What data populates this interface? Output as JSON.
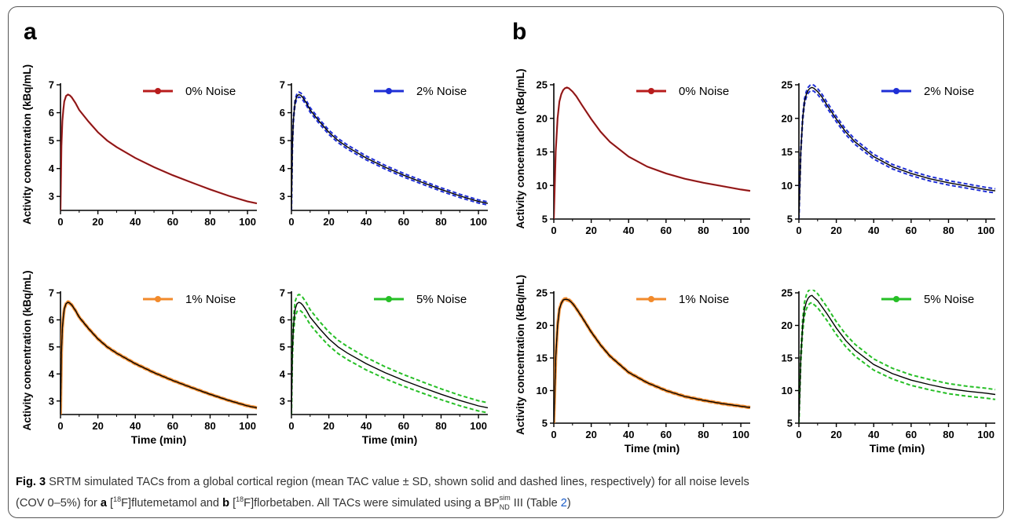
{
  "panels": {
    "a_label": "a",
    "b_label": "b"
  },
  "caption": {
    "fig_label": "Fig. 3",
    "text1": " SRTM simulated TACs from a global cortical region (mean TAC value ± SD, shown solid and dashed lines, respectively) for all noise levels",
    "text2a": "(COV 0–5%) for ",
    "a": "a",
    "iso_a_pre": " [",
    "iso_a_mass": "18",
    "iso_a_post": "F]flutemetamol and ",
    "b": "b",
    "iso_b_pre": " [",
    "iso_b_mass": "18",
    "iso_b_post": "F]florbetaben. All TACs were simulated using a BP",
    "bp_sup": "sim",
    "bp_sub": "ND",
    "text_end1": " III (Table ",
    "table_ref": "2",
    "text_end2": ")"
  },
  "chart_data": [
    {
      "id": "a-0",
      "type": "line",
      "noise": "0% Noise",
      "color": "#b81c1c",
      "x": [
        0,
        0.5,
        1,
        1.5,
        2,
        3,
        4,
        5,
        6,
        8,
        10,
        15,
        20,
        25,
        30,
        40,
        50,
        60,
        70,
        80,
        90,
        100,
        105
      ],
      "y": [
        2.5,
        4.8,
        5.7,
        6.1,
        6.4,
        6.6,
        6.65,
        6.62,
        6.55,
        6.35,
        6.1,
        5.68,
        5.3,
        5.0,
        4.77,
        4.38,
        4.05,
        3.76,
        3.5,
        3.25,
        3.02,
        2.82,
        2.75
      ],
      "sd": 0,
      "ylim": [
        2.5,
        7
      ],
      "yticks": [
        3,
        4,
        5,
        6,
        7
      ],
      "xlim": [
        0,
        105
      ],
      "xticks": [
        0,
        20,
        40,
        60,
        80,
        100
      ],
      "ylabel": "Activity concentration (kBq/mL)",
      "xlabel": ""
    },
    {
      "id": "a-2",
      "type": "line",
      "noise": "2% Noise",
      "color": "#1f2fd6",
      "x": [
        0,
        0.5,
        1,
        1.5,
        2,
        3,
        4,
        5,
        6,
        8,
        10,
        15,
        20,
        25,
        30,
        40,
        50,
        60,
        70,
        80,
        90,
        100,
        105
      ],
      "y": [
        2.5,
        4.8,
        5.7,
        6.1,
        6.4,
        6.6,
        6.65,
        6.62,
        6.55,
        6.35,
        6.1,
        5.68,
        5.3,
        5.0,
        4.77,
        4.38,
        4.05,
        3.76,
        3.5,
        3.25,
        3.02,
        2.82,
        2.75
      ],
      "sd": 0.09,
      "ylim": [
        2.5,
        7
      ],
      "yticks": [
        3,
        4,
        5,
        6,
        7
      ],
      "xlim": [
        0,
        105
      ],
      "xticks": [
        0,
        20,
        40,
        60,
        80,
        100
      ],
      "ylabel": "",
      "xlabel": ""
    },
    {
      "id": "a-1",
      "type": "line",
      "noise": "1% Noise",
      "color": "#f28a2b",
      "x": [
        0,
        0.5,
        1,
        1.5,
        2,
        3,
        4,
        5,
        6,
        8,
        10,
        15,
        20,
        25,
        30,
        40,
        50,
        60,
        70,
        80,
        90,
        100,
        105
      ],
      "y": [
        2.5,
        4.8,
        5.7,
        6.1,
        6.4,
        6.6,
        6.65,
        6.62,
        6.55,
        6.35,
        6.1,
        5.68,
        5.3,
        5.0,
        4.77,
        4.38,
        4.05,
        3.76,
        3.5,
        3.25,
        3.02,
        2.82,
        2.75
      ],
      "sd": 0.05,
      "ylim": [
        2.5,
        7
      ],
      "yticks": [
        3,
        4,
        5,
        6,
        7
      ],
      "xlim": [
        0,
        105
      ],
      "xticks": [
        0,
        20,
        40,
        60,
        80,
        100
      ],
      "ylabel": "Activity concentration (kBq/mL)",
      "xlabel": "Time (min)"
    },
    {
      "id": "a-5",
      "type": "line",
      "noise": "5% Noise",
      "color": "#26bf26",
      "x": [
        0,
        0.5,
        1,
        1.5,
        2,
        3,
        4,
        5,
        6,
        8,
        10,
        15,
        20,
        25,
        30,
        40,
        50,
        60,
        70,
        80,
        90,
        100,
        105
      ],
      "y": [
        2.5,
        4.8,
        5.7,
        6.1,
        6.4,
        6.6,
        6.65,
        6.62,
        6.55,
        6.35,
        6.1,
        5.68,
        5.3,
        5.0,
        4.77,
        4.38,
        4.05,
        3.76,
        3.5,
        3.25,
        3.02,
        2.82,
        2.75
      ],
      "sd": 0.3,
      "ylim": [
        2.5,
        7
      ],
      "yticks": [
        3,
        4,
        5,
        6,
        7
      ],
      "xlim": [
        0,
        105
      ],
      "xticks": [
        0,
        20,
        40,
        60,
        80,
        100
      ],
      "ylabel": "",
      "xlabel": "Time (min)"
    },
    {
      "id": "b-0",
      "type": "line",
      "noise": "0% Noise",
      "color": "#b81c1c",
      "x": [
        0,
        1,
        2,
        3,
        4,
        5,
        6,
        7,
        8,
        10,
        12,
        15,
        20,
        25,
        30,
        40,
        50,
        60,
        70,
        80,
        90,
        100,
        105
      ],
      "y": [
        5,
        15,
        20,
        22.5,
        23.6,
        24.2,
        24.5,
        24.6,
        24.5,
        24.0,
        23.3,
        22.0,
        19.9,
        18.0,
        16.5,
        14.3,
        12.8,
        11.8,
        11.0,
        10.4,
        9.9,
        9.4,
        9.2
      ],
      "sd": 0,
      "ylim": [
        5,
        25
      ],
      "yticks": [
        5,
        10,
        15,
        20,
        25
      ],
      "xlim": [
        0,
        105
      ],
      "xticks": [
        0,
        20,
        40,
        60,
        80,
        100
      ],
      "ylabel": "Activity concentration (kBq/mL)",
      "xlabel": ""
    },
    {
      "id": "b-2",
      "type": "line",
      "noise": "2% Noise",
      "color": "#1f2fd6",
      "x": [
        0,
        1,
        2,
        3,
        4,
        5,
        6,
        7,
        8,
        10,
        12,
        15,
        20,
        25,
        30,
        40,
        50,
        60,
        70,
        80,
        90,
        100,
        105
      ],
      "y": [
        5,
        15,
        20,
        22.5,
        23.6,
        24.2,
        24.5,
        24.6,
        24.5,
        24.0,
        23.3,
        22.0,
        19.9,
        18.0,
        16.5,
        14.3,
        12.8,
        11.8,
        11.0,
        10.4,
        9.9,
        9.4,
        9.2
      ],
      "sd": 0.45,
      "ylim": [
        5,
        25
      ],
      "yticks": [
        5,
        10,
        15,
        20,
        25
      ],
      "xlim": [
        0,
        105
      ],
      "xticks": [
        0,
        20,
        40,
        60,
        80,
        100
      ],
      "ylabel": "",
      "xlabel": ""
    },
    {
      "id": "b-1",
      "type": "line",
      "noise": "1% Noise",
      "color": "#f28a2b",
      "x": [
        0,
        1,
        2,
        3,
        4,
        5,
        6,
        7,
        8,
        10,
        12,
        15,
        20,
        25,
        30,
        40,
        50,
        60,
        70,
        80,
        90,
        100,
        105
      ],
      "y": [
        5,
        15,
        20,
        22.5,
        23.4,
        23.9,
        24.0,
        24.0,
        23.9,
        23.4,
        22.6,
        21.3,
        19.0,
        17.0,
        15.3,
        12.8,
        11.2,
        10.0,
        9.1,
        8.5,
        8.0,
        7.6,
        7.4
      ],
      "sd": 0.22,
      "ylim": [
        5,
        25
      ],
      "yticks": [
        5,
        10,
        15,
        20,
        25
      ],
      "xlim": [
        0,
        105
      ],
      "xticks": [
        0,
        20,
        40,
        60,
        80,
        100
      ],
      "ylabel": "Activity concentration (kBq/mL)",
      "xlabel": "Time (min)"
    },
    {
      "id": "b-5",
      "type": "line",
      "noise": "5% Noise",
      "color": "#26bf26",
      "x": [
        0,
        1,
        2,
        3,
        4,
        5,
        6,
        7,
        8,
        10,
        12,
        15,
        20,
        25,
        30,
        40,
        50,
        60,
        70,
        80,
        90,
        100,
        105
      ],
      "y": [
        5,
        15,
        20,
        22.5,
        23.6,
        24.2,
        24.5,
        24.6,
        24.3,
        23.8,
        23.0,
        21.8,
        19.6,
        17.7,
        16.2,
        14.0,
        12.6,
        11.6,
        10.9,
        10.3,
        9.9,
        9.6,
        9.4
      ],
      "sd": 1.1,
      "ylim": [
        5,
        25
      ],
      "yticks": [
        5,
        10,
        15,
        20,
        25
      ],
      "xlim": [
        0,
        105
      ],
      "xticks": [
        0,
        20,
        40,
        60,
        80,
        100
      ],
      "ylabel": "",
      "xlabel": "Time (min)"
    }
  ]
}
